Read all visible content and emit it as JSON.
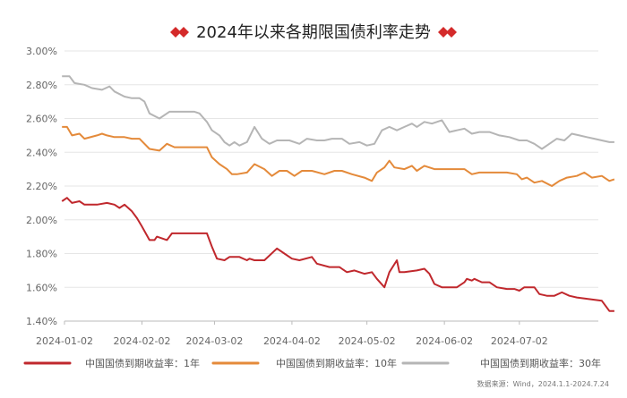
{
  "chart_data": {
    "type": "line",
    "title": "2024年以来各期限国债利率走势",
    "xlabel": "",
    "ylabel": "",
    "ylim": [
      1.4,
      3.0
    ],
    "yticks": [
      "1.40%",
      "1.60%",
      "1.80%",
      "2.00%",
      "2.20%",
      "2.40%",
      "2.60%",
      "2.80%",
      "3.00%"
    ],
    "xticks": [
      "2024-01-02",
      "2024-02-02",
      "2024-03-02",
      "2024-04-02",
      "2024-05-02",
      "2024-06-02",
      "2024-07-02"
    ],
    "grid": "horizontal",
    "legend_position": "bottom",
    "source": "数据来源：Wind，2024.1.1-2024.7.24",
    "series": [
      {
        "name": "中国国债到期收益率：1年",
        "color": "#c0282d",
        "points": [
          [
            "2024-01-01",
            2.11
          ],
          [
            "2024-01-03",
            2.13
          ],
          [
            "2024-01-05",
            2.1
          ],
          [
            "2024-01-08",
            2.11
          ],
          [
            "2024-01-10",
            2.09
          ],
          [
            "2024-01-15",
            2.09
          ],
          [
            "2024-01-19",
            2.1
          ],
          [
            "2024-01-22",
            2.09
          ],
          [
            "2024-01-24",
            2.07
          ],
          [
            "2024-01-26",
            2.09
          ],
          [
            "2024-01-29",
            2.05
          ],
          [
            "2024-01-31",
            2.01
          ],
          [
            "2024-02-02",
            1.96
          ],
          [
            "2024-02-05",
            1.88
          ],
          [
            "2024-02-07",
            1.88
          ],
          [
            "2024-02-08",
            1.9
          ],
          [
            "2024-02-12",
            1.88
          ],
          [
            "2024-02-14",
            1.92
          ],
          [
            "2024-02-20",
            1.92
          ],
          [
            "2024-02-24",
            1.92
          ],
          [
            "2024-02-28",
            1.92
          ],
          [
            "2024-03-01",
            1.84
          ],
          [
            "2024-03-03",
            1.77
          ],
          [
            "2024-03-06",
            1.76
          ],
          [
            "2024-03-08",
            1.78
          ],
          [
            "2024-03-12",
            1.78
          ],
          [
            "2024-03-15",
            1.76
          ],
          [
            "2024-03-16",
            1.77
          ],
          [
            "2024-03-18",
            1.76
          ],
          [
            "2024-03-22",
            1.76
          ],
          [
            "2024-03-27",
            1.83
          ],
          [
            "2024-03-30",
            1.8
          ],
          [
            "2024-04-02",
            1.77
          ],
          [
            "2024-04-05",
            1.76
          ],
          [
            "2024-04-10",
            1.78
          ],
          [
            "2024-04-12",
            1.74
          ],
          [
            "2024-04-17",
            1.72
          ],
          [
            "2024-04-21",
            1.72
          ],
          [
            "2024-04-24",
            1.69
          ],
          [
            "2024-04-27",
            1.7
          ],
          [
            "2024-05-01",
            1.68
          ],
          [
            "2024-05-04",
            1.69
          ],
          [
            "2024-05-06",
            1.65
          ],
          [
            "2024-05-09",
            1.6
          ],
          [
            "2024-05-11",
            1.69
          ],
          [
            "2024-05-14",
            1.76
          ],
          [
            "2024-05-15",
            1.69
          ],
          [
            "2024-05-17",
            1.69
          ],
          [
            "2024-05-22",
            1.7
          ],
          [
            "2024-05-25",
            1.71
          ],
          [
            "2024-05-27",
            1.68
          ],
          [
            "2024-05-29",
            1.62
          ],
          [
            "2024-06-01",
            1.6
          ],
          [
            "2024-06-05",
            1.6
          ],
          [
            "2024-06-07",
            1.6
          ],
          [
            "2024-06-10",
            1.63
          ],
          [
            "2024-06-11",
            1.65
          ],
          [
            "2024-06-13",
            1.64
          ],
          [
            "2024-06-14",
            1.65
          ],
          [
            "2024-06-17",
            1.63
          ],
          [
            "2024-06-20",
            1.63
          ],
          [
            "2024-06-23",
            1.6
          ],
          [
            "2024-06-27",
            1.59
          ],
          [
            "2024-06-30",
            1.59
          ],
          [
            "2024-07-02",
            1.58
          ],
          [
            "2024-07-04",
            1.6
          ],
          [
            "2024-07-08",
            1.6
          ],
          [
            "2024-07-10",
            1.56
          ],
          [
            "2024-07-13",
            1.55
          ],
          [
            "2024-07-16",
            1.55
          ],
          [
            "2024-07-19",
            1.57
          ],
          [
            "2024-07-22",
            1.55
          ],
          [
            "2024-07-25",
            1.54
          ],
          [
            "2024-08-04",
            1.52
          ],
          [
            "2024-08-07",
            1.46
          ],
          [
            "2024-08-09",
            1.46
          ]
        ]
      },
      {
        "name": "中国国债到期收益率：10年",
        "color": "#e48a3a",
        "points": [
          [
            "2024-01-01",
            2.55
          ],
          [
            "2024-01-03",
            2.55
          ],
          [
            "2024-01-05",
            2.5
          ],
          [
            "2024-01-08",
            2.51
          ],
          [
            "2024-01-10",
            2.48
          ],
          [
            "2024-01-15",
            2.5
          ],
          [
            "2024-01-17",
            2.51
          ],
          [
            "2024-01-19",
            2.5
          ],
          [
            "2024-01-22",
            2.49
          ],
          [
            "2024-01-26",
            2.49
          ],
          [
            "2024-01-29",
            2.48
          ],
          [
            "2024-02-01",
            2.48
          ],
          [
            "2024-02-05",
            2.42
          ],
          [
            "2024-02-09",
            2.41
          ],
          [
            "2024-02-12",
            2.45
          ],
          [
            "2024-02-15",
            2.43
          ],
          [
            "2024-02-20",
            2.43
          ],
          [
            "2024-02-28",
            2.43
          ],
          [
            "2024-03-01",
            2.37
          ],
          [
            "2024-03-04",
            2.33
          ],
          [
            "2024-03-07",
            2.3
          ],
          [
            "2024-03-09",
            2.27
          ],
          [
            "2024-03-11",
            2.27
          ],
          [
            "2024-03-15",
            2.28
          ],
          [
            "2024-03-18",
            2.33
          ],
          [
            "2024-03-22",
            2.3
          ],
          [
            "2024-03-25",
            2.26
          ],
          [
            "2024-03-28",
            2.29
          ],
          [
            "2024-03-31",
            2.29
          ],
          [
            "2024-04-03",
            2.26
          ],
          [
            "2024-04-06",
            2.29
          ],
          [
            "2024-04-10",
            2.29
          ],
          [
            "2024-04-15",
            2.27
          ],
          [
            "2024-04-19",
            2.29
          ],
          [
            "2024-04-22",
            2.29
          ],
          [
            "2024-04-26",
            2.27
          ],
          [
            "2024-05-01",
            2.25
          ],
          [
            "2024-05-04",
            2.23
          ],
          [
            "2024-05-06",
            2.28
          ],
          [
            "2024-05-09",
            2.31
          ],
          [
            "2024-05-11",
            2.35
          ],
          [
            "2024-05-13",
            2.31
          ],
          [
            "2024-05-17",
            2.3
          ],
          [
            "2024-05-20",
            2.32
          ],
          [
            "2024-05-22",
            2.29
          ],
          [
            "2024-05-25",
            2.32
          ],
          [
            "2024-05-29",
            2.3
          ],
          [
            "2024-06-01",
            2.3
          ],
          [
            "2024-06-05",
            2.3
          ],
          [
            "2024-06-10",
            2.3
          ],
          [
            "2024-06-13",
            2.27
          ],
          [
            "2024-06-16",
            2.28
          ],
          [
            "2024-06-20",
            2.28
          ],
          [
            "2024-06-23",
            2.28
          ],
          [
            "2024-06-27",
            2.28
          ],
          [
            "2024-07-01",
            2.27
          ],
          [
            "2024-07-03",
            2.24
          ],
          [
            "2024-07-05",
            2.25
          ],
          [
            "2024-07-08",
            2.22
          ],
          [
            "2024-07-11",
            2.23
          ],
          [
            "2024-07-15",
            2.2
          ],
          [
            "2024-07-18",
            2.23
          ],
          [
            "2024-07-21",
            2.25
          ],
          [
            "2024-07-25",
            2.26
          ],
          [
            "2024-07-28",
            2.28
          ],
          [
            "2024-07-31",
            2.25
          ],
          [
            "2024-08-04",
            2.26
          ],
          [
            "2024-08-07",
            2.23
          ],
          [
            "2024-08-09",
            2.24
          ]
        ]
      },
      {
        "name": "中国国债到期收益率：30年",
        "color": "#b5b5b5",
        "points": [
          [
            "2024-01-01",
            2.85
          ],
          [
            "2024-01-04",
            2.85
          ],
          [
            "2024-01-06",
            2.81
          ],
          [
            "2024-01-10",
            2.8
          ],
          [
            "2024-01-13",
            2.78
          ],
          [
            "2024-01-17",
            2.77
          ],
          [
            "2024-01-20",
            2.79
          ],
          [
            "2024-01-22",
            2.76
          ],
          [
            "2024-01-26",
            2.73
          ],
          [
            "2024-01-29",
            2.72
          ],
          [
            "2024-02-01",
            2.72
          ],
          [
            "2024-02-03",
            2.7
          ],
          [
            "2024-02-05",
            2.63
          ],
          [
            "2024-02-09",
            2.6
          ],
          [
            "2024-02-13",
            2.64
          ],
          [
            "2024-02-16",
            2.64
          ],
          [
            "2024-02-23",
            2.64
          ],
          [
            "2024-02-25",
            2.63
          ],
          [
            "2024-02-28",
            2.58
          ],
          [
            "2024-03-01",
            2.53
          ],
          [
            "2024-03-04",
            2.5
          ],
          [
            "2024-03-06",
            2.46
          ],
          [
            "2024-03-08",
            2.44
          ],
          [
            "2024-03-10",
            2.46
          ],
          [
            "2024-03-12",
            2.44
          ],
          [
            "2024-03-15",
            2.46
          ],
          [
            "2024-03-18",
            2.55
          ],
          [
            "2024-03-21",
            2.48
          ],
          [
            "2024-03-24",
            2.45
          ],
          [
            "2024-03-27",
            2.47
          ],
          [
            "2024-04-01",
            2.47
          ],
          [
            "2024-04-05",
            2.45
          ],
          [
            "2024-04-08",
            2.48
          ],
          [
            "2024-04-12",
            2.47
          ],
          [
            "2024-04-15",
            2.47
          ],
          [
            "2024-04-18",
            2.48
          ],
          [
            "2024-04-22",
            2.48
          ],
          [
            "2024-04-25",
            2.45
          ],
          [
            "2024-04-29",
            2.46
          ],
          [
            "2024-05-02",
            2.44
          ],
          [
            "2024-05-05",
            2.45
          ],
          [
            "2024-05-08",
            2.53
          ],
          [
            "2024-05-11",
            2.55
          ],
          [
            "2024-05-14",
            2.53
          ],
          [
            "2024-05-17",
            2.55
          ],
          [
            "2024-05-20",
            2.57
          ],
          [
            "2024-05-22",
            2.55
          ],
          [
            "2024-05-25",
            2.58
          ],
          [
            "2024-05-28",
            2.57
          ],
          [
            "2024-06-01",
            2.59
          ],
          [
            "2024-06-04",
            2.52
          ],
          [
            "2024-06-07",
            2.53
          ],
          [
            "2024-06-10",
            2.54
          ],
          [
            "2024-06-13",
            2.51
          ],
          [
            "2024-06-16",
            2.52
          ],
          [
            "2024-06-20",
            2.52
          ],
          [
            "2024-06-24",
            2.5
          ],
          [
            "2024-06-28",
            2.49
          ],
          [
            "2024-07-02",
            2.47
          ],
          [
            "2024-07-05",
            2.47
          ],
          [
            "2024-07-08",
            2.45
          ],
          [
            "2024-07-11",
            2.42
          ],
          [
            "2024-07-14",
            2.45
          ],
          [
            "2024-07-17",
            2.48
          ],
          [
            "2024-07-20",
            2.47
          ],
          [
            "2024-07-23",
            2.51
          ],
          [
            "2024-07-26",
            2.5
          ],
          [
            "2024-07-29",
            2.49
          ],
          [
            "2024-08-01",
            2.48
          ],
          [
            "2024-08-04",
            2.47
          ],
          [
            "2024-08-07",
            2.46
          ],
          [
            "2024-08-09",
            2.46
          ]
        ]
      }
    ]
  }
}
